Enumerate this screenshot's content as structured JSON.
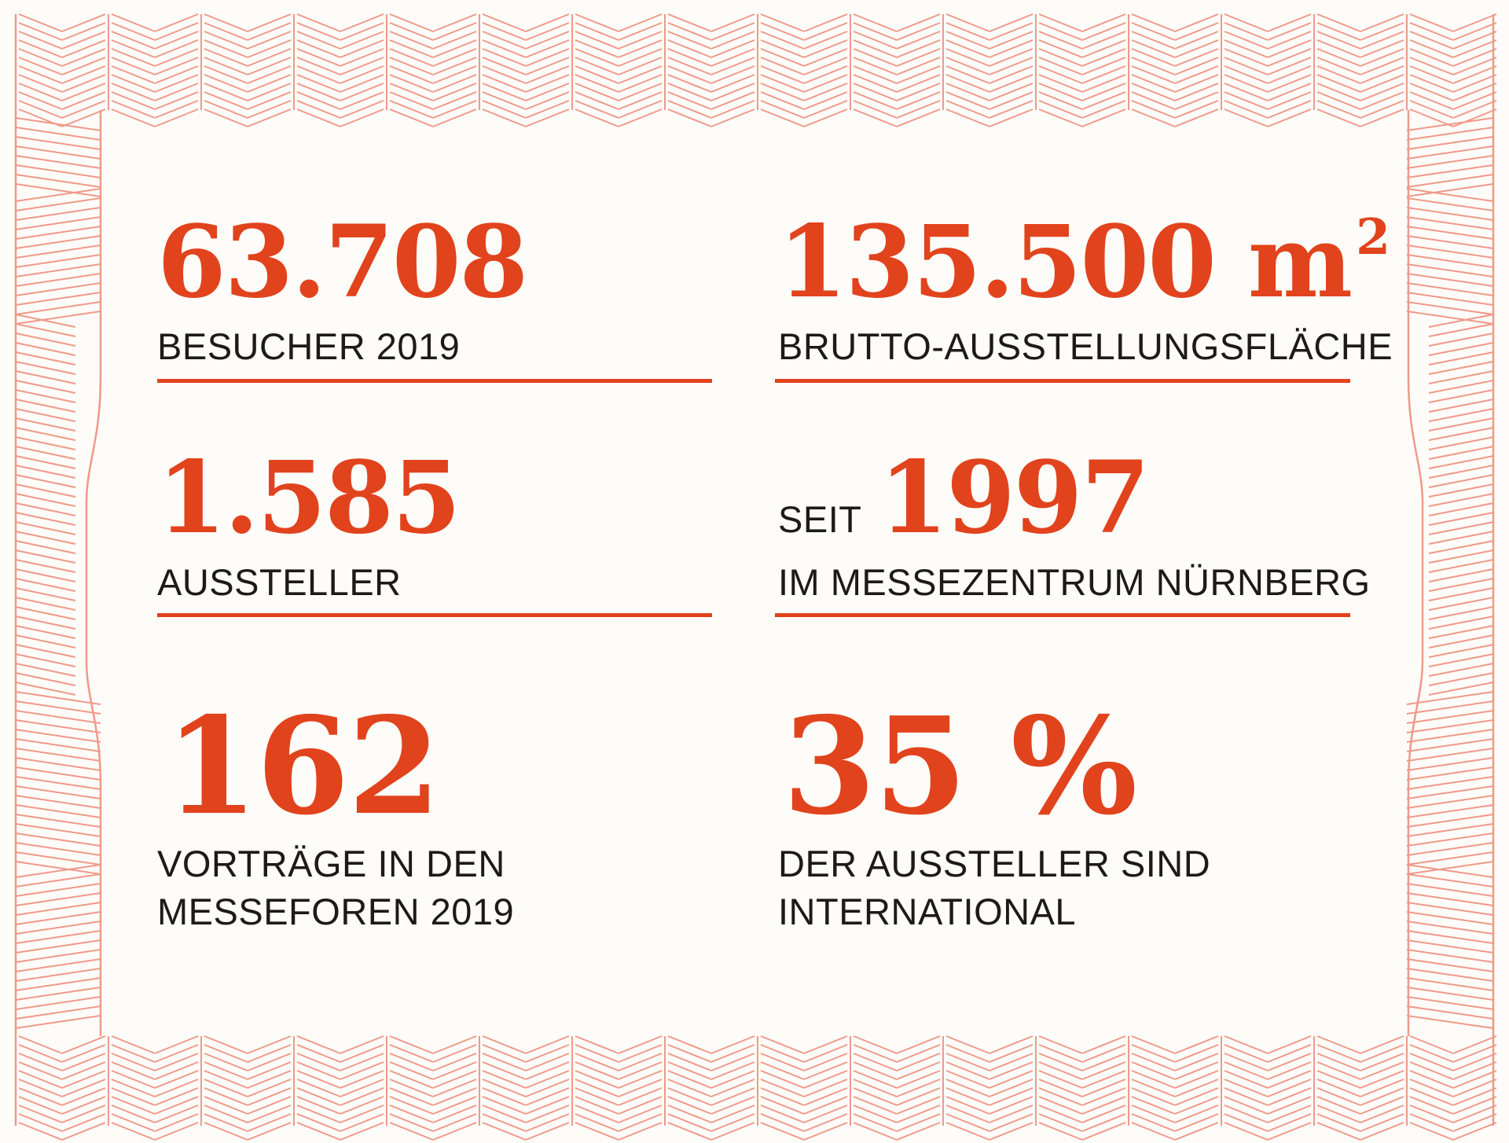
{
  "colors": {
    "accent": "#e1431d",
    "pattern": "#f0998a",
    "text": "#1f1a17",
    "background": "#fdfcf8"
  },
  "stats": {
    "visitors": {
      "value": "63.708",
      "label": "BESUCHER 2019"
    },
    "area": {
      "value": "135.500 m",
      "unit_superscript": "2",
      "label": "BRUTTO-AUSSTELLUNGSFLÄCHE"
    },
    "exhibitors": {
      "value": "1.585",
      "label": "AUSSTELLER"
    },
    "since": {
      "prefix": "SEIT",
      "value": "1997",
      "label": "IM MESSEZENTRUM NÜRNBERG"
    },
    "talks": {
      "value": "162",
      "label_line1": "VORTRÄGE IN DEN",
      "label_line2": "MESSEFOREN 2019"
    },
    "international": {
      "value": "35 %",
      "label_line1": "DER AUSSTELLER SIND",
      "label_line2": "INTERNATIONAL"
    }
  }
}
